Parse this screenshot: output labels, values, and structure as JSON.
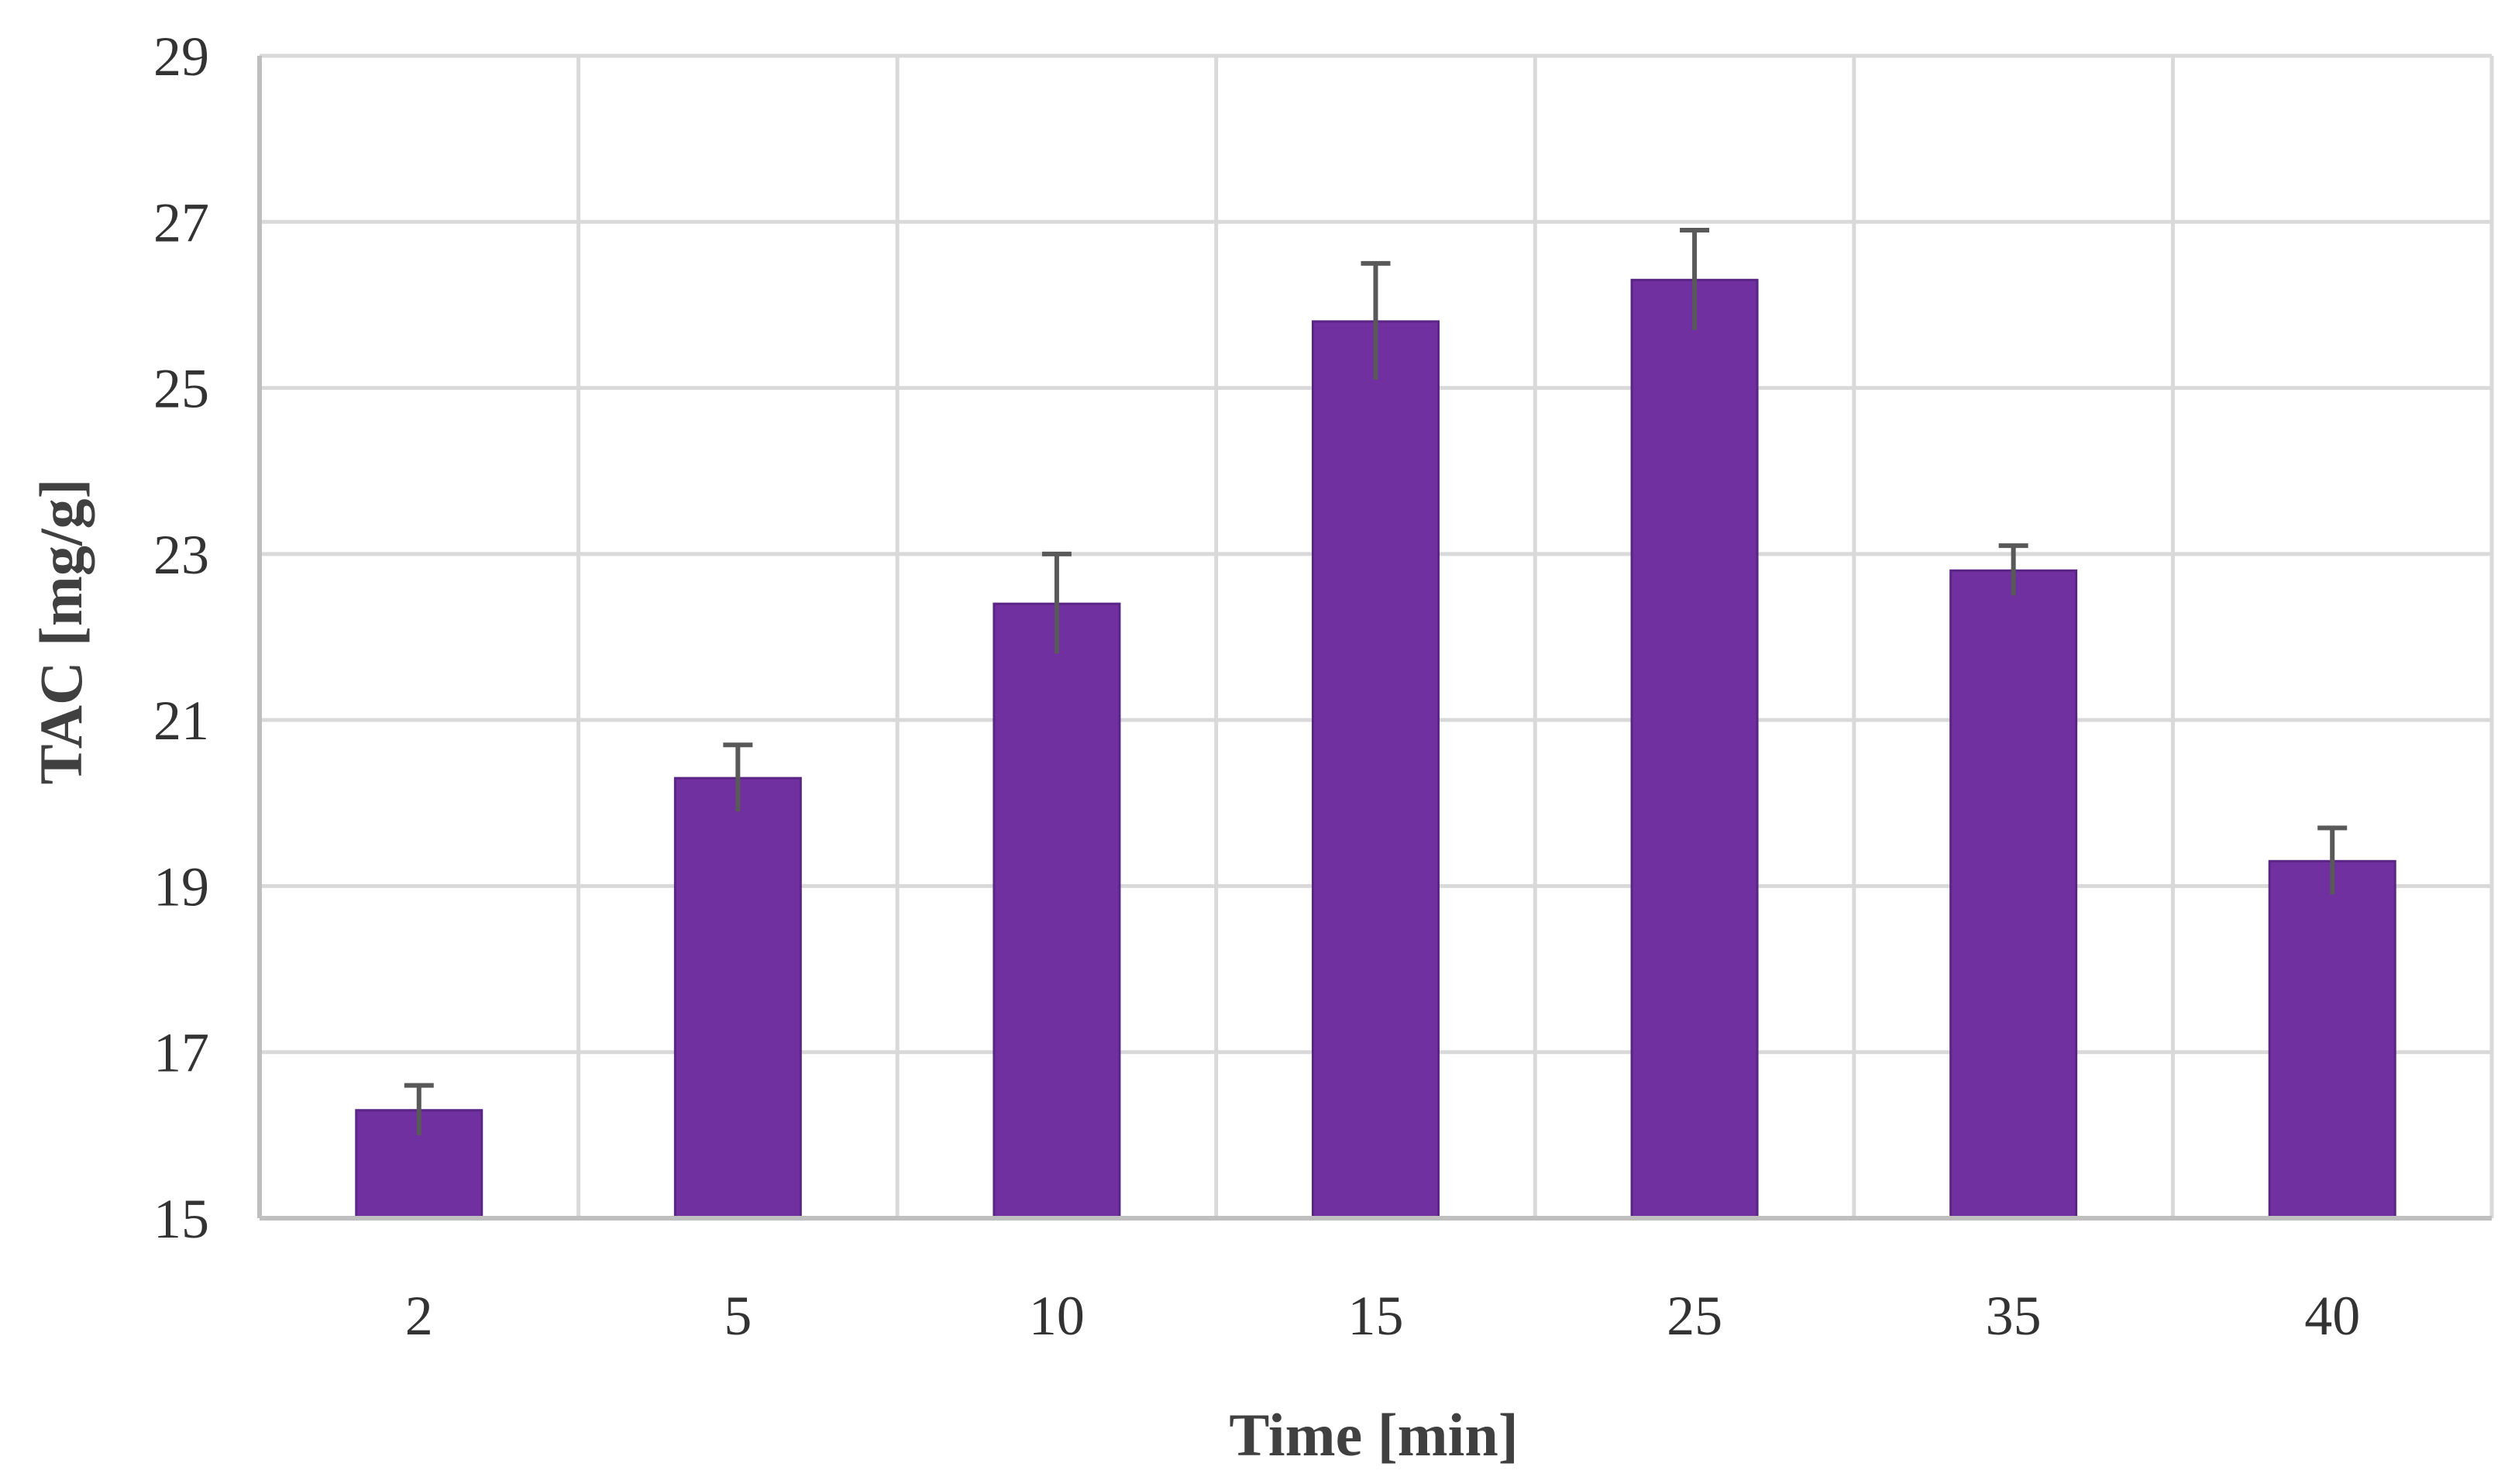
{
  "chart_data": {
    "type": "bar",
    "title": "",
    "xlabel": "Time [min]",
    "ylabel": "TAC [mg/g]",
    "categories": [
      "2",
      "5",
      "10",
      "15",
      "25",
      "35",
      "40"
    ],
    "values": [
      16.3,
      20.3,
      22.4,
      25.8,
      26.3,
      22.8,
      19.3
    ],
    "error": [
      0.3,
      0.4,
      0.6,
      0.7,
      0.6,
      0.3,
      0.4
    ],
    "ylim": [
      15,
      29
    ],
    "yticks": [
      15,
      17,
      19,
      21,
      23,
      25,
      27,
      29
    ],
    "grid": true,
    "legend": "none",
    "colors": {
      "bar": "#7030a0",
      "bar_edge": "#5b2585",
      "error_bar": "#595959",
      "grid": "#d9d9d9",
      "axis": "#bfbfbf"
    }
  }
}
